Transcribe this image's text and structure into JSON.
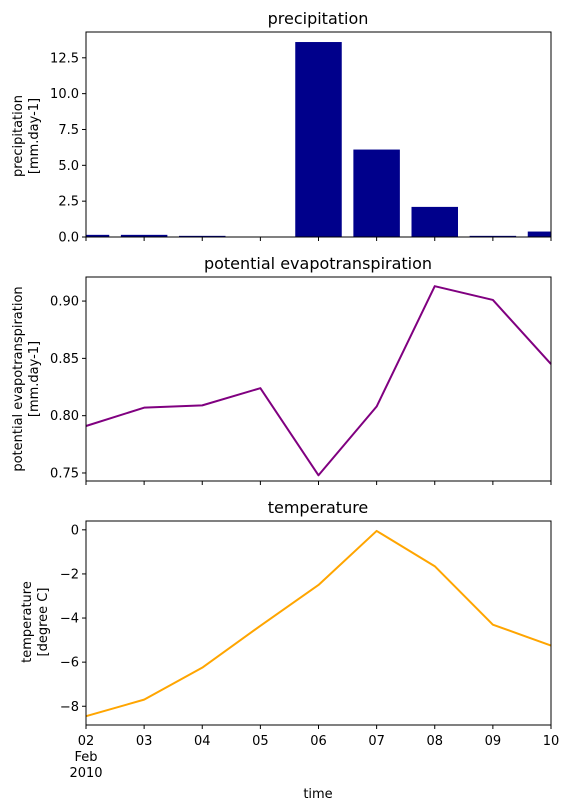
{
  "chart_data": [
    {
      "type": "bar",
      "title": "precipitation",
      "ylabel_lines": [
        "precipitation",
        "[mm.day-1]"
      ],
      "xlim": [
        2,
        10
      ],
      "ylim": [
        0,
        14.3
      ],
      "yticks": [
        0.0,
        2.5,
        5.0,
        7.5,
        10.0,
        12.5
      ],
      "ytick_labels": [
        "0.0",
        "2.5",
        "5.0",
        "7.5",
        "10.0",
        "12.5"
      ],
      "x": [
        2,
        3,
        4,
        5,
        6,
        7,
        8,
        9,
        10
      ],
      "values": [
        0.15,
        0.15,
        0.08,
        0.0,
        13.6,
        6.1,
        2.1,
        0.08,
        0.38
      ],
      "bar_width_days": 0.8,
      "color": "#00008b",
      "grid": false
    },
    {
      "type": "line",
      "title": "potential evapotranspiration",
      "ylabel_lines": [
        "potential evapotranspiration",
        "[mm.day-1]"
      ],
      "xlim": [
        2,
        10
      ],
      "ylim": [
        0.743,
        0.921
      ],
      "yticks": [
        0.75,
        0.8,
        0.85,
        0.9
      ],
      "ytick_labels": [
        "0.75",
        "0.80",
        "0.85",
        "0.90"
      ],
      "x": [
        2,
        3,
        4,
        5,
        6,
        7,
        8,
        9,
        10
      ],
      "values": [
        0.791,
        0.807,
        0.809,
        0.824,
        0.748,
        0.808,
        0.913,
        0.901,
        0.845
      ],
      "color": "#800080",
      "grid": false
    },
    {
      "type": "line",
      "title": "temperature",
      "ylabel_lines": [
        "temperature",
        "[degree C]"
      ],
      "xlim": [
        2,
        10
      ],
      "ylim": [
        -8.85,
        0.4
      ],
      "yticks": [
        -8,
        -6,
        -4,
        -2,
        0
      ],
      "ytick_labels": [
        "−8",
        "−6",
        "−4",
        "−2",
        "0"
      ],
      "x": [
        2,
        3,
        4,
        5,
        6,
        7,
        8,
        9,
        10
      ],
      "values": [
        -8.45,
        -7.7,
        -6.25,
        -4.35,
        -2.5,
        -0.05,
        -1.65,
        -4.3,
        -5.25
      ],
      "color": "#ffa500",
      "grid": false
    }
  ],
  "xaxis": {
    "ticks": [
      2,
      3,
      4,
      5,
      6,
      7,
      8,
      9,
      10
    ],
    "tick_labels": [
      "02",
      "03",
      "04",
      "05",
      "06",
      "07",
      "08",
      "09",
      "10"
    ],
    "month_label": "Feb",
    "year_label": "2010",
    "label": "time"
  }
}
